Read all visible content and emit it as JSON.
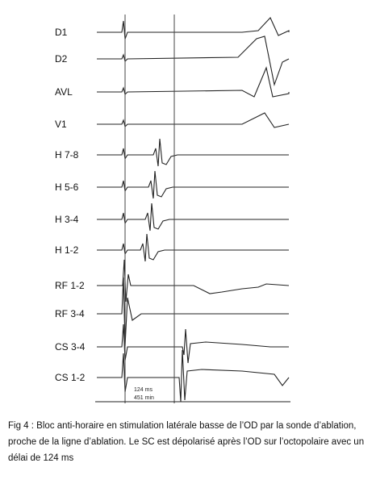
{
  "figure": {
    "channels": [
      "D1",
      "D2",
      "AVL",
      "V1",
      "H 7-8",
      "H 5-6",
      "H 3-4",
      "H 1-2",
      "RF 1-2",
      "RF 3-4",
      "CS 3-4",
      "CS 1-2"
    ],
    "interval_label": "124 ms",
    "interval_label_2": "451 min"
  },
  "caption": "Fig 4 : Bloc anti-horaire en stimulation latérale basse de l’OD par la sonde d’ablation, proche de la ligne d’ablation. Le SC est dépolarisé après  l’OD sur l’octopolaire avec un délai de 124 ms"
}
